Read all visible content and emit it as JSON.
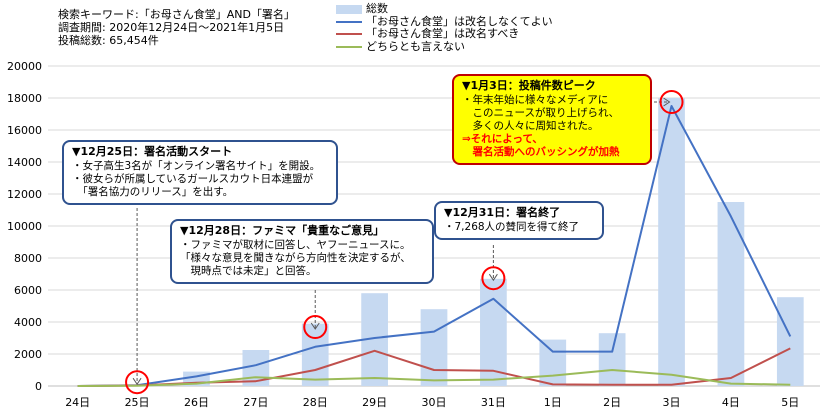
{
  "meta": {
    "keyword": "検索キーワード:「お母さん食堂」AND「署名」",
    "period": "調査期間: 2020年12月24日～2021年1月5日",
    "total": "投稿総数: 65,454件"
  },
  "colors": {
    "bar": "#c6d9f1",
    "s1": "#4472c4",
    "s2": "#c0504d",
    "s3": "#9bbb59",
    "box": "#2f528f",
    "circle": "#ff0000"
  },
  "chart_data": {
    "type": "bar",
    "categories": [
      "24日",
      "25日",
      "26日",
      "27日",
      "28日",
      "29日",
      "30日",
      "31日",
      "1日",
      "2日",
      "3日",
      "4日",
      "5日"
    ],
    "ylim": [
      0,
      20000
    ],
    "yticks": [
      0,
      2000,
      4000,
      6000,
      8000,
      10000,
      12000,
      14000,
      16000,
      18000,
      20000
    ],
    "series": [
      {
        "name": "総数",
        "kind": "bar",
        "values": [
          0,
          100,
          900,
          2250,
          3900,
          5800,
          4800,
          6700,
          2900,
          3300,
          18000,
          11500,
          5550
        ]
      },
      {
        "name": "「お母さん食堂」は改名しなくてよい",
        "kind": "line",
        "values": [
          0,
          50,
          600,
          1300,
          2450,
          3000,
          3400,
          5450,
          2150,
          2150,
          17500,
          10600,
          3100
        ]
      },
      {
        "name": "「お母さん食堂」は改名すべき",
        "kind": "line",
        "values": [
          0,
          30,
          200,
          300,
          1000,
          2200,
          1000,
          950,
          100,
          80,
          80,
          500,
          2350
        ]
      },
      {
        "name": "どちらとも言えない",
        "kind": "line",
        "values": [
          0,
          20,
          150,
          550,
          400,
          500,
          350,
          400,
          650,
          1000,
          700,
          150,
          80
        ]
      }
    ],
    "annotations": [
      {
        "title": "▼12月25日：署名活動スタート",
        "lines": [
          "・女子高生3名が「オンライン署名サイト」を開設。",
          "・彼女らが所属しているガールスカウト日本連盟が",
          "　「署名協力のリリース」を出す。"
        ],
        "emphasis": []
      },
      {
        "title": "▼12月28日：ファミマ「貴重なご意見」",
        "lines": [
          "・ファミマが取材に回答し、ヤフーニュースに。",
          "「様々な意見を聞きながら方向性を決定するが、",
          "　現時点では未定」と回答。"
        ],
        "emphasis": []
      },
      {
        "title": "▼12月31日：署名終了",
        "lines": [
          "・7,268人の賛同を得て終了"
        ],
        "emphasis": []
      },
      {
        "title": "▼1月3日：投稿件数ピーク",
        "lines": [
          "・年末年始に様々なメディアに",
          "　このニュースが取り上げられ、",
          "　多くの人々に周知された。"
        ],
        "emphasis": [
          "⇒それによって、",
          "　署名活動へのバッシングが加熱"
        ]
      }
    ]
  }
}
